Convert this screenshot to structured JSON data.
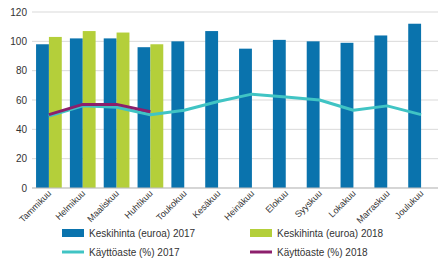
{
  "chart_data": {
    "type": "bar",
    "categories": [
      "Tammikuu",
      "Helmikuu",
      "Maaliskuu",
      "Huhtikuu",
      "Toukokuu",
      "Kesäkuu",
      "Heinäkuu",
      "Elokuu",
      "Syyskuu",
      "Lokakuu",
      "Marraskuu",
      "Joulukuu"
    ],
    "series": [
      {
        "name": "Keskihinta (euroa) 2017",
        "color": "#0a73ad",
        "type": "bar",
        "values": [
          98,
          102,
          102,
          96,
          100,
          107,
          95,
          101,
          100,
          99,
          104,
          112
        ]
      },
      {
        "name": "Keskihinta (euroa) 2018",
        "color": "#b4cf3a",
        "type": "bar",
        "values": [
          103,
          107,
          106,
          98,
          null,
          null,
          null,
          null,
          null,
          null,
          null,
          null
        ]
      },
      {
        "name": "Käyttöaste (%) 2017",
        "color": "#40c4c4",
        "type": "line",
        "values": [
          49,
          56,
          55,
          50,
          53,
          59,
          64,
          62,
          60,
          53,
          56,
          50
        ]
      },
      {
        "name": "Käyttöaste (%) 2018",
        "color": "#8c1f6c",
        "type": "line",
        "values": [
          50,
          57,
          57,
          52,
          null,
          null,
          null,
          null,
          null,
          null,
          null,
          null
        ]
      }
    ],
    "ylim": [
      0,
      120
    ],
    "yticks": [
      0,
      20,
      40,
      60,
      80,
      100,
      120
    ],
    "grid": true,
    "legend": "bottom"
  }
}
